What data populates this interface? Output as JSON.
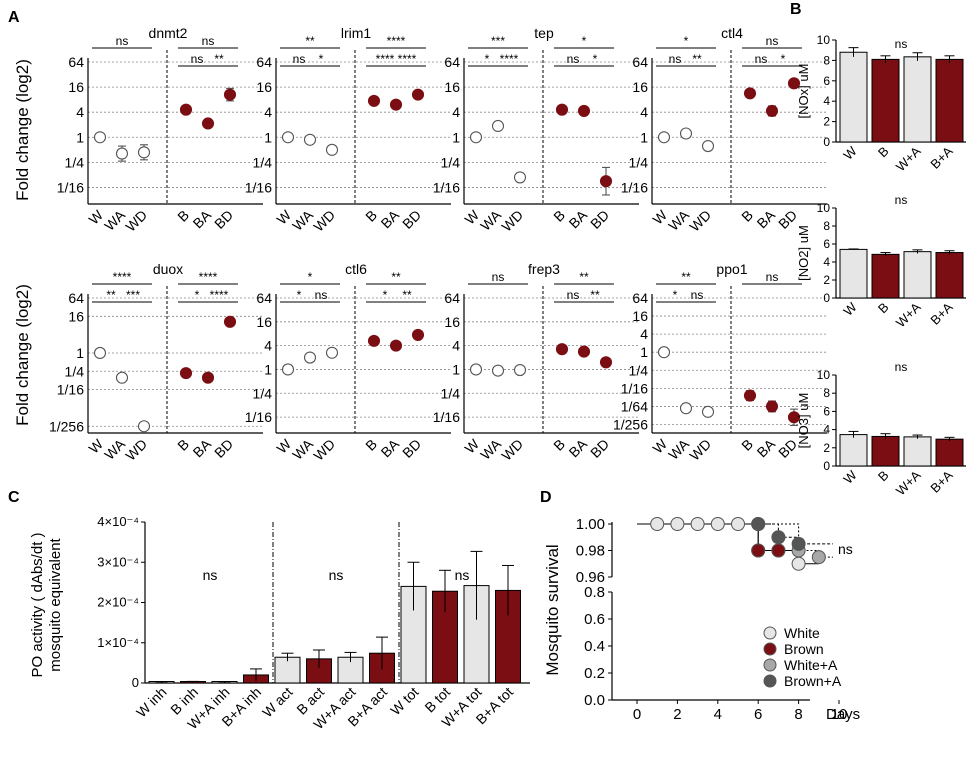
{
  "colors": {
    "white": "#e6e6e6",
    "brown": "#7a0e12",
    "gray": "#a8a8a8",
    "dark": "#555555",
    "line": "#000000"
  },
  "panels": {
    "a": "A",
    "b": "B",
    "c": "C",
    "d": "D"
  },
  "chart_data": [
    {
      "id": "A",
      "type": "scatter",
      "ylabel": "Fold change (log2)",
      "categories": [
        "W",
        "WA",
        "WD",
        "B",
        "BA",
        "BD"
      ],
      "subplots": [
        {
          "title": "dnmt2",
          "yticks": [
            "64",
            "16",
            "4",
            "1",
            "1/4",
            "1/16"
          ],
          "ymin": -5,
          "ymax": 6,
          "values": [
            0,
            -1.3,
            -1.2,
            2.2,
            1.1,
            3.4
          ],
          "err": [
            0.1,
            0.6,
            0.6,
            0.3,
            0.2,
            0.5
          ],
          "brackets": [
            {
              "a": 0,
              "b": 2,
              "label": "ns",
              "level": 0
            },
            {
              "a": 3,
              "b": 5,
              "label": "ns",
              "level": 0
            },
            {
              "a": 3,
              "b": 4,
              "label": "ns",
              "level": 1
            },
            {
              "a": 4,
              "b": 5,
              "label": "**",
              "level": 1
            }
          ]
        },
        {
          "title": "lrim1",
          "yticks": [
            "64",
            "16",
            "4",
            "1",
            "1/4",
            "1/16"
          ],
          "ymin": -5,
          "ymax": 6,
          "values": [
            0,
            -0.2,
            -1.0,
            2.9,
            2.6,
            3.4
          ],
          "err": [
            0.1,
            0.15,
            0.25,
            0.2,
            0.2,
            0.25
          ],
          "brackets": [
            {
              "a": 0,
              "b": 2,
              "label": "**",
              "level": 0
            },
            {
              "a": 0,
              "b": 1,
              "label": "ns",
              "level": 1
            },
            {
              "a": 1,
              "b": 2,
              "label": "*",
              "level": 1
            },
            {
              "a": 3,
              "b": 5,
              "label": "****",
              "level": 0
            },
            {
              "a": 3,
              "b": 4,
              "label": "****",
              "level": 1
            },
            {
              "a": 4,
              "b": 5,
              "label": "****",
              "level": 1
            }
          ]
        },
        {
          "title": "tep",
          "yticks": [
            "64",
            "16",
            "4",
            "1",
            "1/4",
            "1/16"
          ],
          "ymin": -5,
          "ymax": 6,
          "values": [
            0,
            0.9,
            -3.2,
            2.2,
            2.1,
            -3.5
          ],
          "err": [
            0.1,
            0.25,
            0.25,
            0.2,
            0.2,
            1.1
          ],
          "brackets": [
            {
              "a": 0,
              "b": 2,
              "label": "***",
              "level": 0
            },
            {
              "a": 0,
              "b": 1,
              "label": "*",
              "level": 1
            },
            {
              "a": 1,
              "b": 2,
              "label": "****",
              "level": 1
            },
            {
              "a": 3,
              "b": 5,
              "label": "*",
              "level": 0
            },
            {
              "a": 3,
              "b": 4,
              "label": "ns",
              "level": 1
            },
            {
              "a": 4,
              "b": 5,
              "label": "*",
              "level": 1
            }
          ]
        },
        {
          "title": "ctl4",
          "yticks": [
            "64",
            "16",
            "4",
            "1",
            "1/4",
            "1/16"
          ],
          "ymin": -5,
          "ymax": 6,
          "values": [
            0,
            0.3,
            -0.7,
            3.5,
            2.1,
            4.3
          ],
          "err": [
            0.1,
            0.15,
            0.2,
            0.2,
            0.4,
            0.2
          ],
          "brackets": [
            {
              "a": 0,
              "b": 2,
              "label": "*",
              "level": 0
            },
            {
              "a": 0,
              "b": 1,
              "label": "ns",
              "level": 1
            },
            {
              "a": 1,
              "b": 2,
              "label": "**",
              "level": 1
            },
            {
              "a": 3,
              "b": 5,
              "label": "ns",
              "level": 0
            },
            {
              "a": 3,
              "b": 4,
              "label": "ns",
              "level": 1
            },
            {
              "a": 4,
              "b": 5,
              "label": "*",
              "level": 1
            }
          ]
        },
        {
          "title": "duox",
          "yticks": [
            "64",
            "16",
            "1",
            "1/4",
            "1/16",
            "1/256"
          ],
          "ymin": -8.3,
          "ymax": 6,
          "values": [
            0,
            -2.7,
            -8.0,
            -2.2,
            -2.7,
            3.4
          ],
          "err": [
            0.1,
            0.15,
            0.15,
            0.15,
            0.15,
            0.15
          ],
          "brackets": [
            {
              "a": 0,
              "b": 2,
              "label": "****",
              "level": 0
            },
            {
              "a": 0,
              "b": 1,
              "label": "**",
              "level": 1
            },
            {
              "a": 1,
              "b": 2,
              "label": "***",
              "level": 1
            },
            {
              "a": 3,
              "b": 5,
              "label": "****",
              "level": 0
            },
            {
              "a": 3,
              "b": 4,
              "label": "*",
              "level": 1
            },
            {
              "a": 4,
              "b": 5,
              "label": "****",
              "level": 1
            }
          ]
        },
        {
          "title": "ctl6",
          "yticks": [
            "64",
            "16",
            "4",
            "1",
            "1/4",
            "1/16"
          ],
          "ymin": -5,
          "ymax": 6,
          "values": [
            0,
            1.0,
            1.4,
            2.4,
            2.0,
            2.9
          ],
          "err": [
            0.1,
            0.2,
            0.3,
            0.2,
            0.15,
            0.2
          ],
          "brackets": [
            {
              "a": 0,
              "b": 2,
              "label": "*",
              "level": 0
            },
            {
              "a": 0,
              "b": 1,
              "label": "*",
              "level": 1
            },
            {
              "a": 1,
              "b": 2,
              "label": "ns",
              "level": 1
            },
            {
              "a": 3,
              "b": 5,
              "label": "**",
              "level": 0
            },
            {
              "a": 3,
              "b": 4,
              "label": "*",
              "level": 1
            },
            {
              "a": 4,
              "b": 5,
              "label": "**",
              "level": 1
            }
          ]
        },
        {
          "title": "frep3",
          "yticks": [
            "64",
            "16",
            "4",
            "1",
            "1/4",
            "1/16"
          ],
          "ymin": -5,
          "ymax": 6,
          "values": [
            0,
            -0.1,
            -0.05,
            1.7,
            1.5,
            0.6
          ],
          "err": [
            0.1,
            0.2,
            0.15,
            0.15,
            0.15,
            0.15
          ],
          "brackets": [
            {
              "a": 0,
              "b": 2,
              "label": "ns",
              "level": 0
            },
            {
              "a": 3,
              "b": 5,
              "label": "**",
              "level": 0
            },
            {
              "a": 3,
              "b": 4,
              "label": "ns",
              "level": 1
            },
            {
              "a": 4,
              "b": 5,
              "label": "**",
              "level": 1
            }
          ]
        },
        {
          "title": "ppo1",
          "yticks": [
            "64",
            "16",
            "4",
            "1",
            "1/4",
            "1/16",
            "1/64",
            "1/256"
          ],
          "ymin": -8.5,
          "ymax": 6,
          "values": [
            0,
            -6.2,
            -6.6,
            -4.8,
            -6.0,
            -7.2
          ],
          "err": [
            0.1,
            0.45,
            0.45,
            0.55,
            0.6,
            0.9
          ],
          "brackets": [
            {
              "a": 0,
              "b": 2,
              "label": "**",
              "level": 0
            },
            {
              "a": 0,
              "b": 1,
              "label": "*",
              "level": 1
            },
            {
              "a": 1,
              "b": 2,
              "label": "ns",
              "level": 1
            },
            {
              "a": 3,
              "b": 5,
              "label": "ns",
              "level": 0
            }
          ]
        }
      ]
    },
    {
      "id": "B",
      "type": "bar",
      "categories": [
        "W",
        "B",
        "W+A",
        "B+A"
      ],
      "subplots": [
        {
          "ylabel": "[NOx] uM",
          "ylim": [
            0,
            10
          ],
          "yticks": [
            "0",
            "2",
            "4",
            "6",
            "8",
            "10"
          ],
          "values": [
            8.8,
            8.1,
            8.35,
            8.1
          ],
          "err": [
            0.45,
            0.35,
            0.4,
            0.35
          ],
          "annotation": "ns"
        },
        {
          "ylabel": "[NO2] uM",
          "ylim": [
            0,
            10
          ],
          "yticks": [
            "0",
            "2",
            "4",
            "6",
            "8",
            "10"
          ],
          "values": [
            5.4,
            4.85,
            5.15,
            5.05
          ],
          "err": [
            0.05,
            0.2,
            0.2,
            0.2
          ],
          "annotation": "ns"
        },
        {
          "ylabel": "[NO3] uM",
          "ylim": [
            0,
            10
          ],
          "yticks": [
            "0",
            "2",
            "4",
            "6",
            "8",
            "10"
          ],
          "values": [
            3.45,
            3.25,
            3.2,
            2.95
          ],
          "err": [
            0.35,
            0.3,
            0.2,
            0.2
          ],
          "annotation": "ns"
        }
      ]
    },
    {
      "id": "C",
      "type": "bar",
      "ylabel_line1": "PO activity ( dAbs/dt )",
      "ylabel_line2": "mosquito equivalent",
      "ylim": [
        0,
        0.0004
      ],
      "yticks": [
        "0",
        "1×10⁻⁴",
        "2×10⁻⁴",
        "3×10⁻⁴",
        "4×10⁻⁴"
      ],
      "categories": [
        "W inh",
        "B inh",
        "W+A inh",
        "B+A inh",
        "W act",
        "B act",
        "W+A act",
        "B+A act",
        "W tot",
        "B tot",
        "W+A tot",
        "B+A tot"
      ],
      "values": [
        2e-06,
        3e-06,
        2e-06,
        2e-05,
        6.4e-05,
        6e-05,
        6.4e-05,
        7.4e-05,
        0.00024,
        0.000228,
        0.000242,
        0.00023
      ],
      "err": [
        1e-06,
        1e-06,
        1e-06,
        1.5e-05,
        1e-05,
        2.2e-05,
        1.2e-05,
        4e-05,
        6e-05,
        5.2e-05,
        8.5e-05,
        6.2e-05
      ],
      "annotations": [
        "ns",
        "ns",
        "ns"
      ]
    },
    {
      "id": "D",
      "type": "line",
      "ylabel": "Mosquito survival",
      "xlabel": "Days",
      "xticks": [
        "0",
        "2",
        "4",
        "6",
        "8",
        "10"
      ],
      "yticks_top": [
        "0.96",
        "0.98",
        "1.00"
      ],
      "yticks_bottom": [
        "0.0",
        "0.2",
        "0.4",
        "0.6",
        "0.8"
      ],
      "annotation": "ns",
      "series": [
        {
          "name": "White",
          "steps": [
            [
              0,
              1.0
            ],
            [
              6,
              0.98
            ],
            [
              8,
              0.97
            ],
            [
              9,
              0.97
            ]
          ],
          "points": [
            [
              1,
              1.0
            ],
            [
              2,
              1.0
            ],
            [
              3,
              1.0
            ],
            [
              4,
              1.0
            ],
            [
              5,
              1.0
            ],
            [
              6,
              1.0
            ],
            [
              6,
              0.98
            ],
            [
              7,
              0.98
            ],
            [
              8,
              0.97
            ]
          ]
        },
        {
          "name": "Brown",
          "steps": [
            [
              0,
              1.0
            ],
            [
              6,
              0.98
            ],
            [
              8,
              0.98
            ]
          ],
          "points": [
            [
              6,
              0.98
            ],
            [
              7,
              0.98
            ]
          ]
        },
        {
          "name": "White+A",
          "steps": [
            [
              0,
              1.0
            ],
            [
              8,
              0.98
            ],
            [
              9,
              0.975
            ],
            [
              9.7,
              0.975
            ]
          ],
          "points": [
            [
              8,
              0.98
            ],
            [
              9,
              0.975
            ]
          ]
        },
        {
          "name": "Brown+A",
          "steps": [
            [
              0,
              1.0
            ],
            [
              7,
              0.99
            ],
            [
              8,
              0.985
            ],
            [
              9.7,
              0.985
            ]
          ],
          "points": [
            [
              6,
              1.0
            ],
            [
              7,
              0.99
            ],
            [
              8,
              0.985
            ]
          ]
        }
      ]
    }
  ]
}
